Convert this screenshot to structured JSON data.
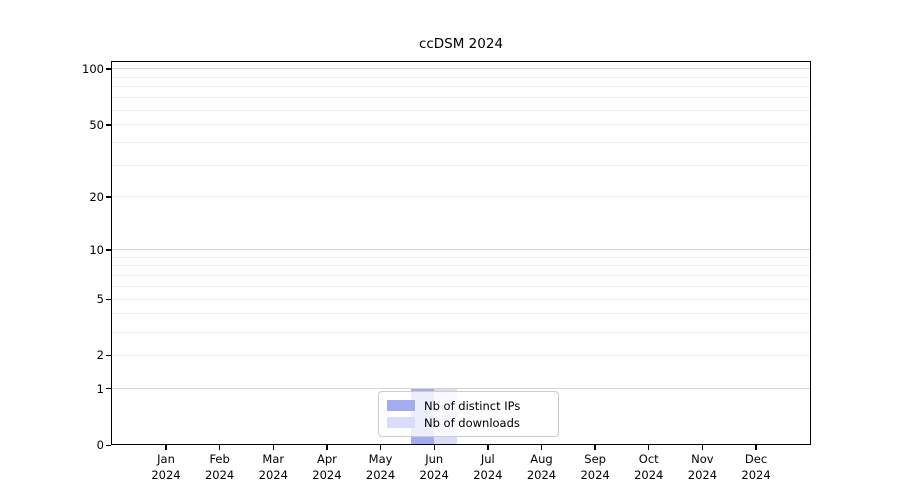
{
  "chart_data": {
    "type": "bar",
    "title": "ccDSM 2024",
    "x": {
      "categories": [
        "Jan",
        "Feb",
        "Mar",
        "Apr",
        "May",
        "Jun",
        "Jul",
        "Aug",
        "Sep",
        "Oct",
        "Nov",
        "Dec"
      ],
      "year": "2024"
    },
    "y": {
      "scale": "log1p",
      "min": 0,
      "max": 110.4,
      "ticks": [
        100,
        50,
        20,
        10,
        5,
        2,
        1,
        0
      ],
      "gridlines": [
        1,
        2,
        3,
        4,
        5,
        6,
        7,
        8,
        9,
        10,
        20,
        30,
        40,
        50,
        60,
        70,
        80,
        90,
        100
      ],
      "major_gridlines": [
        1,
        10,
        100
      ]
    },
    "series": [
      {
        "name": "Nb of distinct IPs",
        "color": "#a4abef",
        "values": [
          0,
          0,
          0,
          0,
          0,
          1,
          0,
          0,
          0,
          0,
          0,
          0
        ]
      },
      {
        "name": "Nb of downloads",
        "color": "#d9ddf9",
        "values": [
          0,
          0,
          0,
          0,
          0,
          1,
          0,
          0,
          0,
          0,
          0,
          0
        ]
      }
    ],
    "legend_position": "lower center",
    "grid": true
  },
  "colors": {
    "axis": "#000000",
    "grid_major": "#d5d5d5",
    "grid_minor": "#f1f1f1",
    "legend_border": "#cccccc",
    "background": "#ffffff"
  }
}
